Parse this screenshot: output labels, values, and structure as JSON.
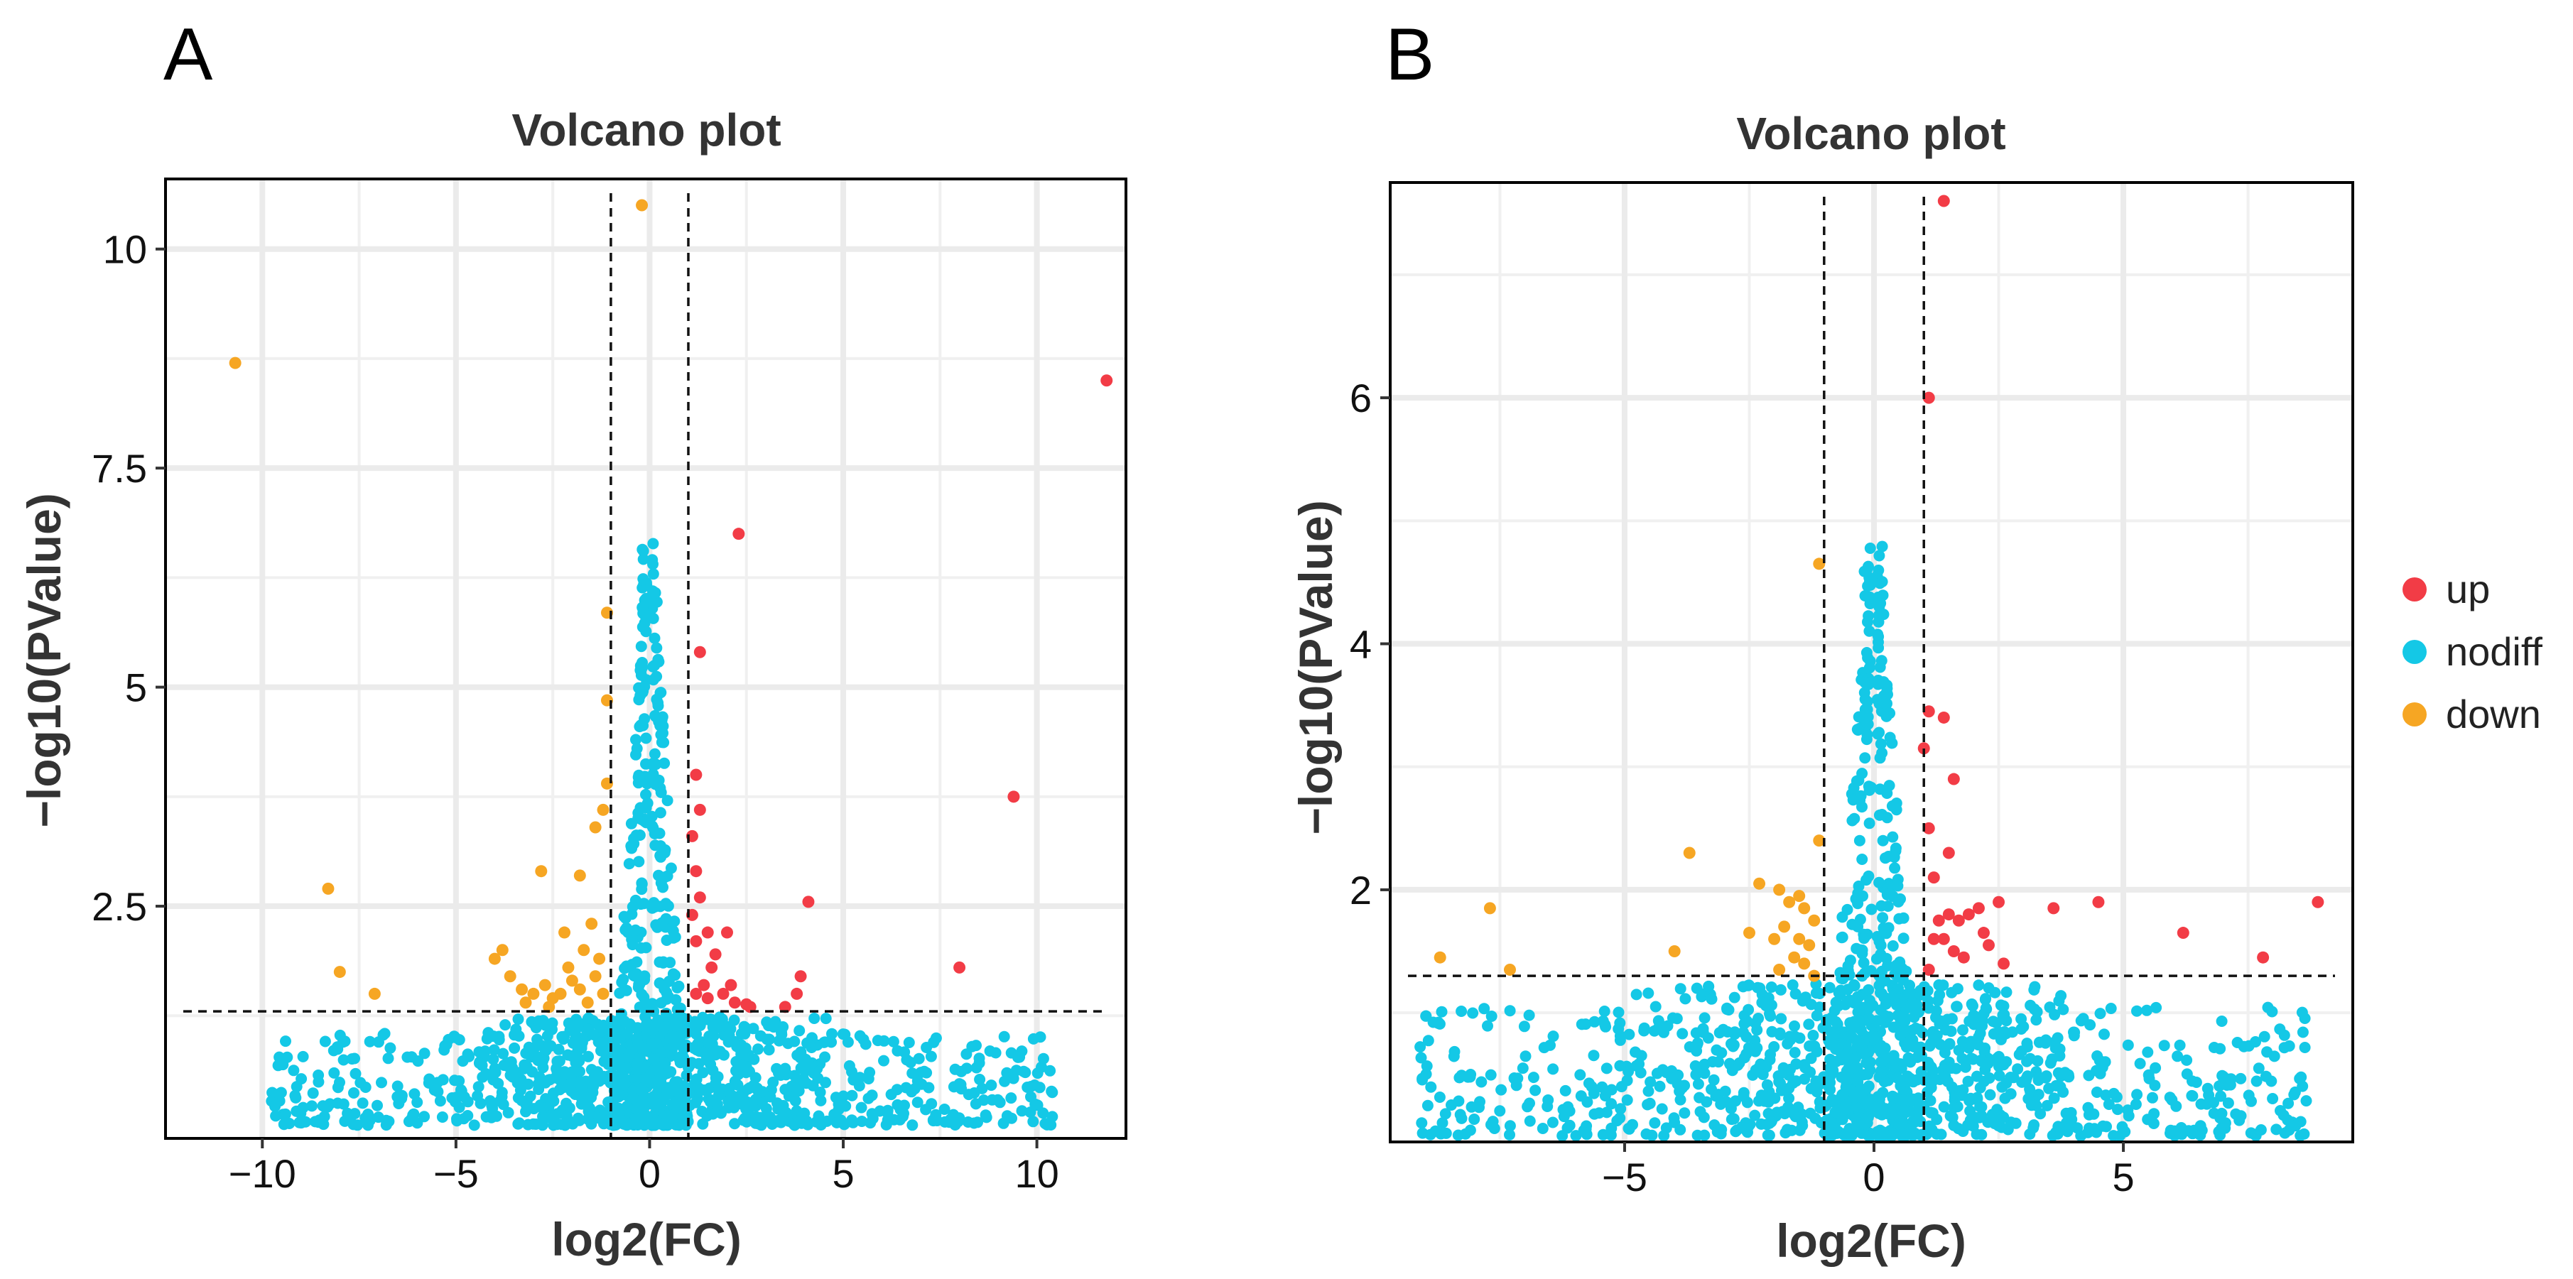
{
  "chart_data": [
    {
      "type": "scatter",
      "panel": "A",
      "title": "Volcano plot",
      "xlabel": "log2(FC)",
      "ylabel": "−log10(PValue)",
      "xlim": [
        -12.5,
        12.3
      ],
      "ylim": [
        -0.15,
        10.8
      ],
      "xticks": [
        -10,
        -5,
        0,
        5,
        10
      ],
      "xtick_labels": [
        "−10",
        "−5",
        "0",
        "5",
        "10"
      ],
      "yticks": [
        2.5,
        5,
        7.5,
        10
      ],
      "ytick_labels": [
        "2.5",
        "5",
        "7.5",
        "10"
      ],
      "thresholds": {
        "x": [
          -1,
          1
        ],
        "y": 1.3
      },
      "series": [
        {
          "name": "up",
          "points": [
            [
              11.8,
              8.5
            ],
            [
              9.4,
              3.75
            ],
            [
              2.3,
              6.75
            ],
            [
              1.3,
              5.4
            ],
            [
              1.2,
              4.0
            ],
            [
              1.3,
              3.6
            ],
            [
              1.1,
              3.3
            ],
            [
              1.2,
              2.9
            ],
            [
              1.3,
              2.6
            ],
            [
              1.1,
              2.4
            ],
            [
              1.5,
              2.2
            ],
            [
              1.2,
              2.1
            ],
            [
              1.7,
              1.95
            ],
            [
              2.0,
              2.2
            ],
            [
              1.6,
              1.8
            ],
            [
              1.4,
              1.6
            ],
            [
              1.9,
              1.5
            ],
            [
              2.2,
              1.4
            ],
            [
              2.6,
              1.35
            ],
            [
              1.2,
              1.5
            ],
            [
              1.5,
              1.45
            ],
            [
              2.1,
              1.6
            ],
            [
              4.1,
              2.55
            ],
            [
              3.9,
              1.7
            ],
            [
              3.8,
              1.5
            ],
            [
              3.5,
              1.35
            ],
            [
              8.0,
              1.8
            ],
            [
              2.5,
              1.38
            ]
          ]
        },
        {
          "name": "down",
          "points": [
            [
              -10.7,
              8.7
            ],
            [
              -0.2,
              10.5
            ],
            [
              -8.3,
              2.7
            ],
            [
              -8.0,
              1.75
            ],
            [
              -7.1,
              1.5
            ],
            [
              -4.0,
              1.9
            ],
            [
              -3.8,
              2.0
            ],
            [
              -3.6,
              1.7
            ],
            [
              -3.3,
              1.55
            ],
            [
              -3.0,
              1.5
            ],
            [
              -2.7,
              1.6
            ],
            [
              -2.5,
              1.45
            ],
            [
              -2.3,
              1.5
            ],
            [
              -2.1,
              1.8
            ],
            [
              -2.0,
              1.65
            ],
            [
              -1.8,
              1.55
            ],
            [
              -1.7,
              2.0
            ],
            [
              -1.6,
              1.4
            ],
            [
              -1.5,
              2.3
            ],
            [
              -1.4,
              1.7
            ],
            [
              -1.3,
              1.9
            ],
            [
              -1.2,
              1.5
            ],
            [
              -1.1,
              3.9
            ],
            [
              -1.2,
              3.6
            ],
            [
              -1.4,
              3.4
            ],
            [
              -1.8,
              2.85
            ],
            [
              -2.8,
              2.9
            ],
            [
              -1.1,
              4.85
            ],
            [
              -1.1,
              5.85
            ],
            [
              -2.2,
              2.2
            ],
            [
              -2.6,
              1.35
            ],
            [
              -3.2,
              1.4
            ]
          ]
        },
        {
          "name": "nodiff",
          "n": 1400,
          "seed": 11,
          "left_tail_x": [
            -9.8,
            -2
          ],
          "right_tail_x": [
            2,
            10.4
          ],
          "tail_max_y": 1.05
        }
      ]
    },
    {
      "type": "scatter",
      "panel": "B",
      "title": "Volcano plot",
      "xlabel": "log2(FC)",
      "ylabel": "−log10(PValue)",
      "xlim": [
        -9.7,
        9.6
      ],
      "ylim": [
        -0.05,
        7.75
      ],
      "xticks": [
        -5,
        0,
        5
      ],
      "xtick_labels": [
        "−5",
        "0",
        "5"
      ],
      "yticks": [
        2,
        4,
        6
      ],
      "ytick_labels": [
        "2",
        "4",
        "6"
      ],
      "thresholds": {
        "x": [
          -1,
          1
        ],
        "y": 1.3
      },
      "series": [
        {
          "name": "up",
          "points": [
            [
              1.4,
              7.6
            ],
            [
              1.1,
              6.0
            ],
            [
              1.0,
              3.15
            ],
            [
              1.1,
              3.45
            ],
            [
              1.4,
              3.4
            ],
            [
              1.6,
              2.9
            ],
            [
              1.5,
              2.3
            ],
            [
              1.1,
              2.5
            ],
            [
              1.2,
              2.1
            ],
            [
              1.3,
              1.75
            ],
            [
              1.5,
              1.8
            ],
            [
              1.7,
              1.75
            ],
            [
              1.9,
              1.8
            ],
            [
              1.4,
              1.6
            ],
            [
              1.2,
              1.6
            ],
            [
              1.6,
              1.5
            ],
            [
              2.1,
              1.85
            ],
            [
              2.5,
              1.9
            ],
            [
              2.6,
              1.4
            ],
            [
              2.3,
              1.55
            ],
            [
              3.6,
              1.85
            ],
            [
              4.5,
              1.9
            ],
            [
              6.2,
              1.65
            ],
            [
              7.8,
              1.45
            ],
            [
              8.9,
              1.9
            ],
            [
              1.1,
              1.35
            ],
            [
              1.8,
              1.45
            ],
            [
              2.2,
              1.65
            ]
          ]
        },
        {
          "name": "down",
          "points": [
            [
              -1.1,
              4.65
            ],
            [
              -8.7,
              1.45
            ],
            [
              -7.7,
              1.85
            ],
            [
              -7.3,
              1.35
            ],
            [
              -4.0,
              1.5
            ],
            [
              -3.7,
              2.3
            ],
            [
              -2.3,
              2.05
            ],
            [
              -1.9,
              2.0
            ],
            [
              -1.7,
              1.9
            ],
            [
              -1.5,
              1.95
            ],
            [
              -2.0,
              1.6
            ],
            [
              -1.8,
              1.7
            ],
            [
              -1.6,
              1.45
            ],
            [
              -1.4,
              1.4
            ],
            [
              -1.3,
              1.55
            ],
            [
              -1.9,
              1.35
            ],
            [
              -1.5,
              1.6
            ],
            [
              -1.2,
              1.75
            ],
            [
              -1.1,
              2.4
            ],
            [
              -2.5,
              1.65
            ],
            [
              -1.4,
              1.85
            ],
            [
              -1.2,
              1.3
            ]
          ]
        },
        {
          "name": "nodiff",
          "n": 1400,
          "seed": 29,
          "left_tail_x": [
            -9.2,
            -2
          ],
          "right_tail_x": [
            2,
            8.7
          ],
          "tail_max_y": 1.05
        }
      ]
    }
  ],
  "panels": {
    "a": {
      "letter": "A",
      "title": "Volcano plot",
      "xlabel": "log2(FC)",
      "ylabel": "−log10(PValue)"
    },
    "b": {
      "letter": "B",
      "title": "Volcano plot",
      "xlabel": "log2(FC)",
      "ylabel": "−log10(PValue)"
    }
  },
  "legend": {
    "items": [
      {
        "label": "up",
        "color": "#f23c46"
      },
      {
        "label": "nodiff",
        "color": "#14c8e6"
      },
      {
        "label": "down",
        "color": "#f6a623"
      }
    ]
  },
  "colors": {
    "up": "#f23c46",
    "nodiff": "#14c8e6",
    "down": "#f6a623"
  }
}
